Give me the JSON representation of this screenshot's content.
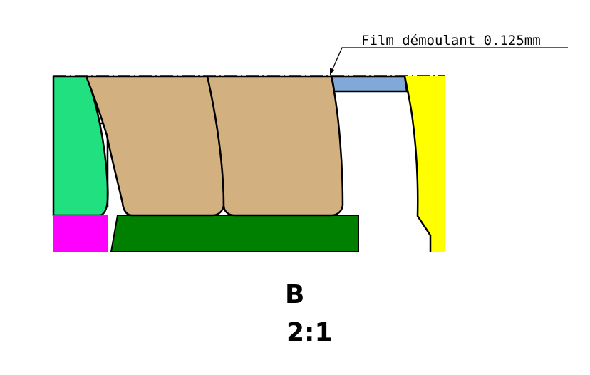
{
  "annotation": {
    "callout_text": "Film démoulant 0.125mm"
  },
  "view": {
    "label": "B",
    "scale": "2:1"
  },
  "colors": {
    "background": "#ffffff",
    "green_light": "#20e080",
    "tan": "#d2b080",
    "blue": "#80a8d8",
    "yellow": "#ffff00",
    "magenta": "#ff00ff",
    "green_dark": "#008000",
    "outline": "#000000"
  }
}
